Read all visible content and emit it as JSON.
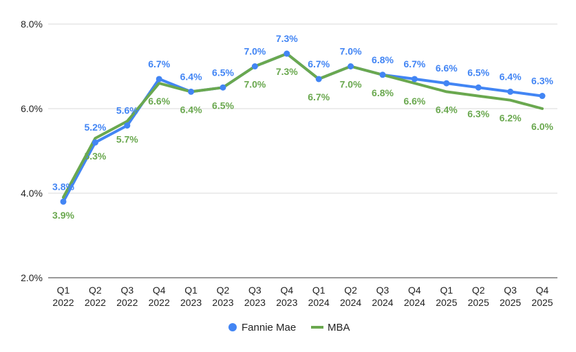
{
  "chart_data": {
    "type": "line",
    "title": "",
    "xlabel": "",
    "ylabel": "",
    "categories": [
      [
        "Q1",
        "2022"
      ],
      [
        "Q2",
        "2022"
      ],
      [
        "Q3",
        "2022"
      ],
      [
        "Q4",
        "2022"
      ],
      [
        "Q1",
        "2023"
      ],
      [
        "Q2",
        "2023"
      ],
      [
        "Q3",
        "2023"
      ],
      [
        "Q4",
        "2023"
      ],
      [
        "Q1",
        "2024"
      ],
      [
        "Q2",
        "2024"
      ],
      [
        "Q3",
        "2024"
      ],
      [
        "Q4",
        "2024"
      ],
      [
        "Q1",
        "2025"
      ],
      [
        "Q2",
        "2025"
      ],
      [
        "Q3",
        "2025"
      ],
      [
        "Q4",
        "2025"
      ]
    ],
    "ylim": [
      2.0,
      8.0
    ],
    "yticks": [
      2.0,
      4.0,
      6.0,
      8.0
    ],
    "ytick_labels": [
      "2.0%",
      "4.0%",
      "6.0%",
      "8.0%"
    ],
    "grid": true,
    "legend_position": "bottom",
    "series": [
      {
        "name": "Fannie Mae",
        "color": "#4285f4",
        "marker": "circle",
        "values": [
          3.8,
          5.2,
          5.6,
          6.7,
          6.4,
          6.5,
          7.0,
          7.3,
          6.7,
          7.0,
          6.8,
          6.7,
          6.6,
          6.5,
          6.4,
          6.3
        ],
        "labels": [
          "3.8%",
          "5.2%",
          "5.6%",
          "6.7%",
          "6.4%",
          "6.5%",
          "7.0%",
          "7.3%",
          "6.7%",
          "7.0%",
          "6.8%",
          "6.7%",
          "6.6%",
          "6.5%",
          "6.4%",
          "6.3%"
        ]
      },
      {
        "name": "MBA",
        "color": "#6aa84f",
        "marker": "none",
        "values": [
          3.9,
          5.3,
          5.7,
          6.6,
          6.4,
          6.5,
          7.0,
          7.3,
          6.7,
          7.0,
          6.8,
          6.6,
          6.4,
          6.3,
          6.2,
          6.0
        ],
        "labels": [
          "3.9%",
          "5.3%",
          "5.7%",
          "6.6%",
          "6.4%",
          "6.5%",
          "7.0%",
          "7.3%",
          "6.7%",
          "7.0%",
          "6.8%",
          "6.6%",
          "6.4%",
          "6.3%",
          "6.2%",
          "6.0%"
        ]
      }
    ]
  }
}
